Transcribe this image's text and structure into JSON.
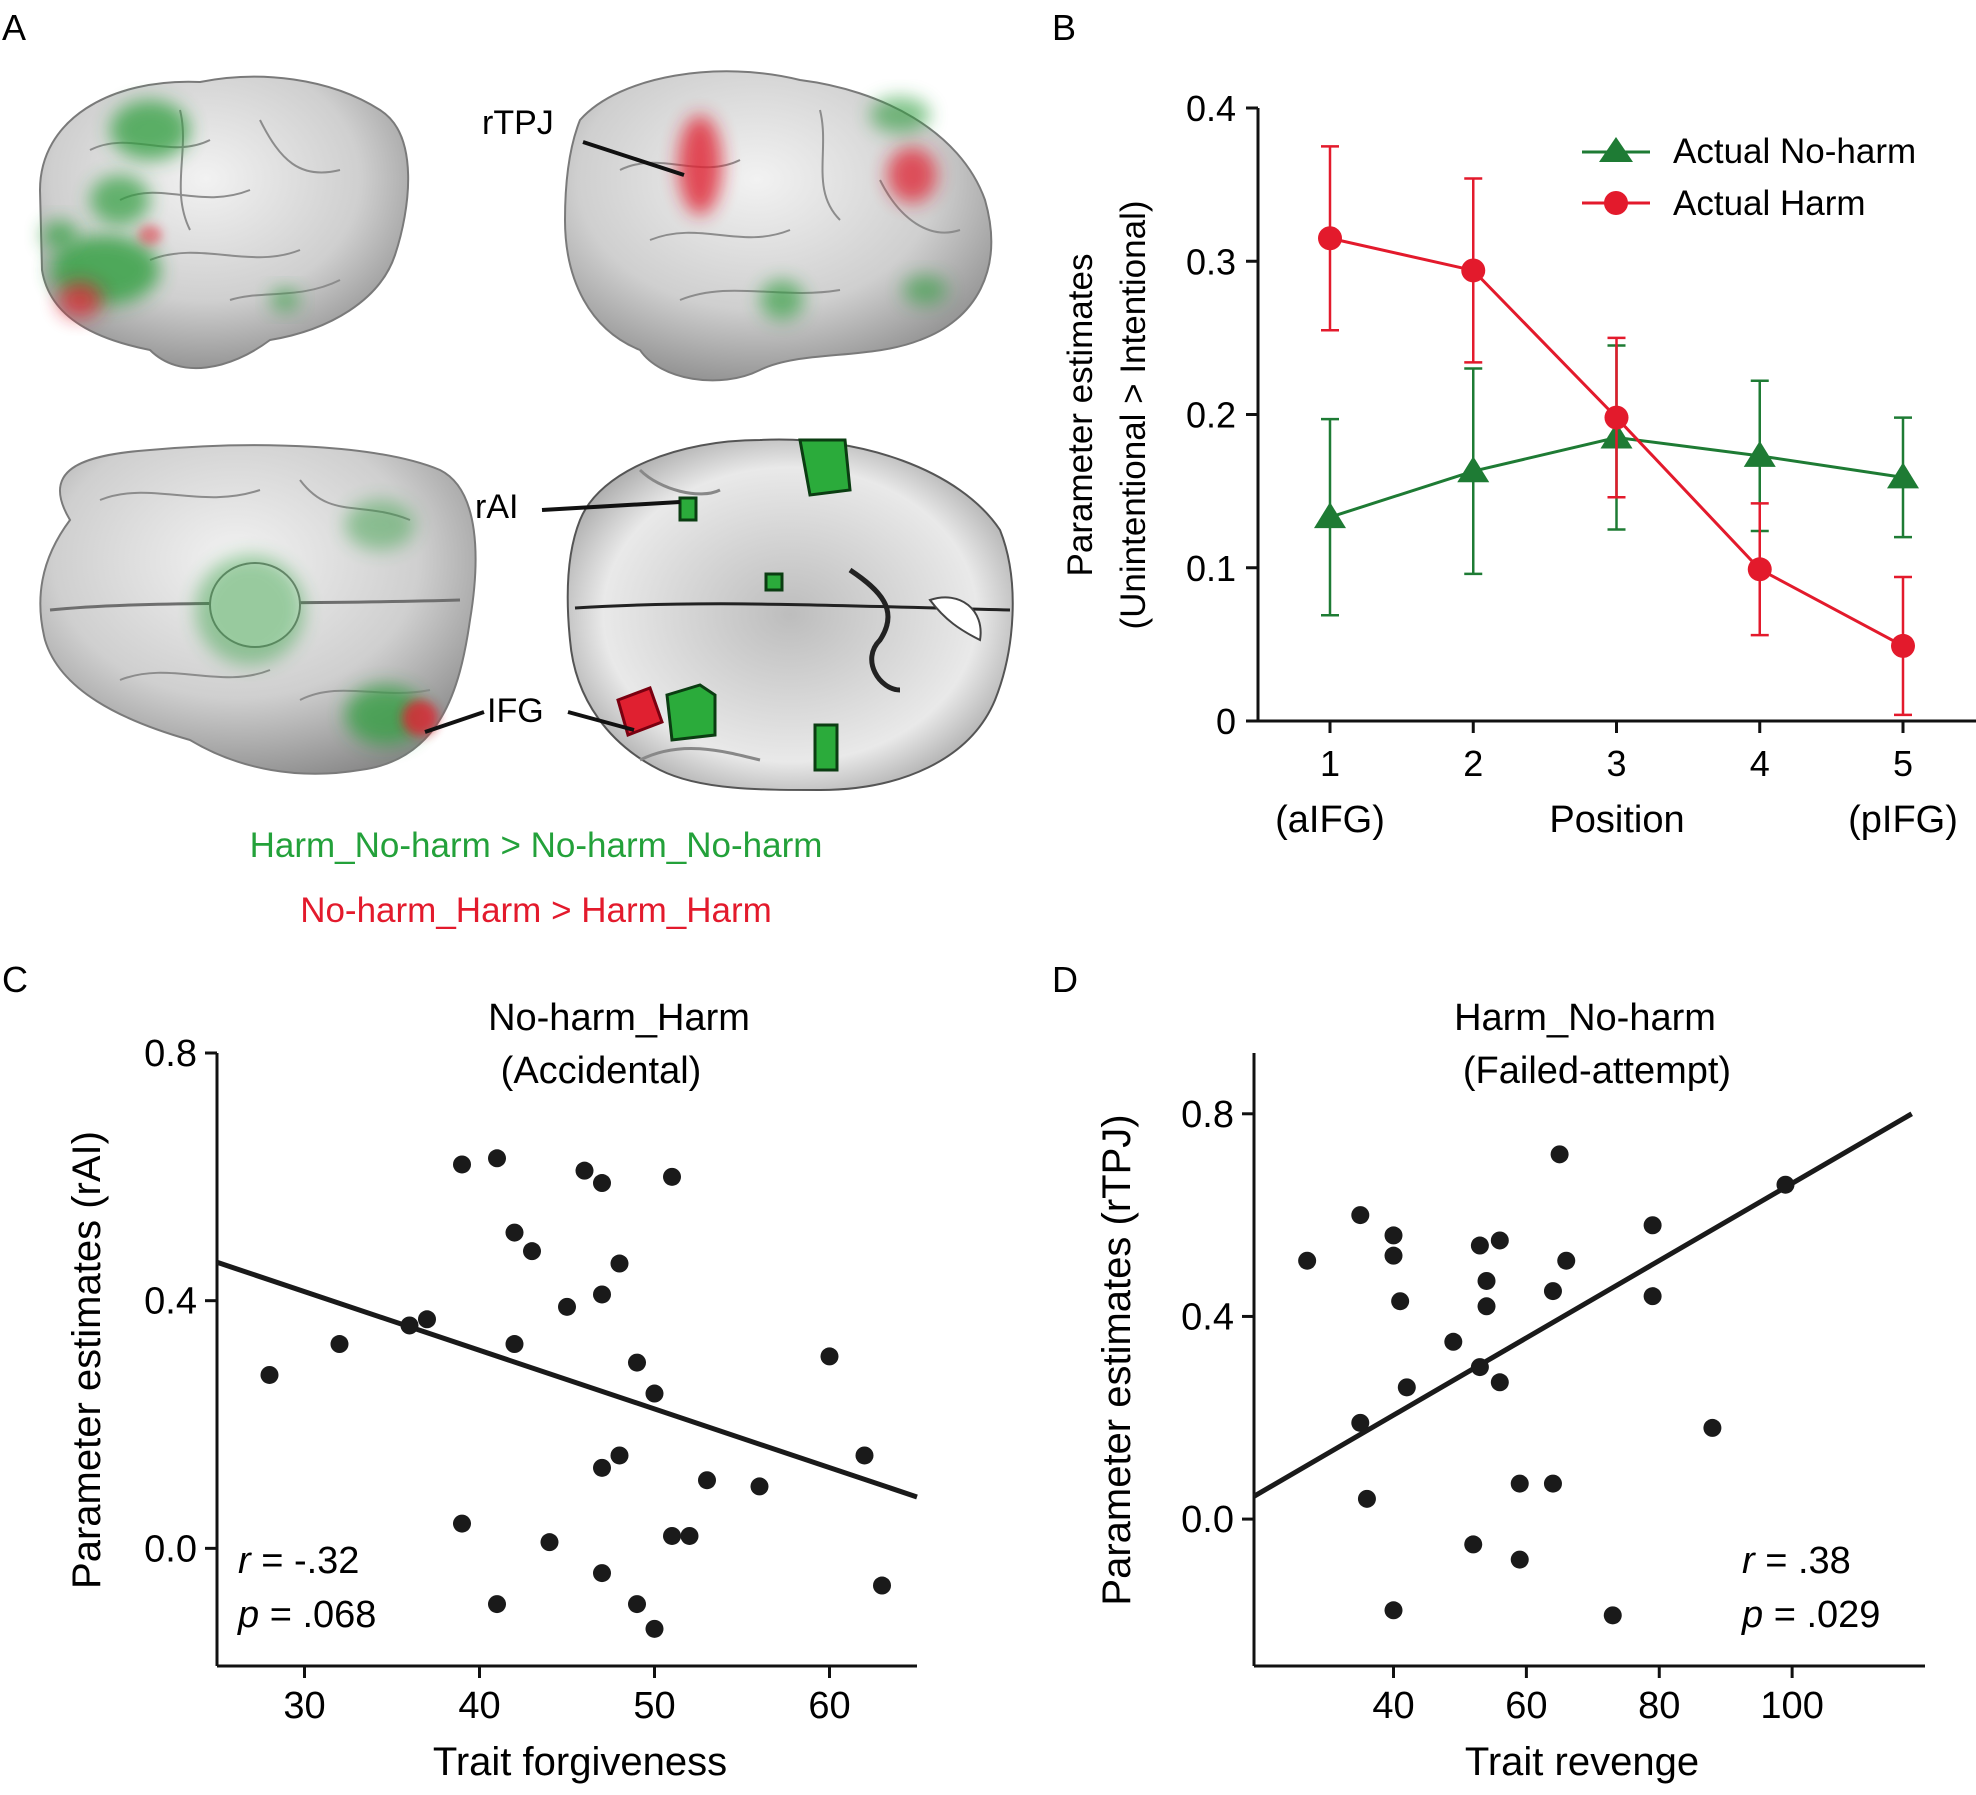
{
  "panels": {
    "a": {
      "letter": "A"
    },
    "b": {
      "letter": "B"
    },
    "c": {
      "letter": "C"
    },
    "d": {
      "letter": "D"
    }
  },
  "brain": {
    "labels": {
      "rtpj": "rTPJ",
      "rai": "rAI",
      "ifg": "IFG"
    },
    "legend_green": "Harm_No-harm > No-harm_No-harm",
    "legend_red": "No-harm_Harm > Harm_Harm"
  },
  "colors": {
    "green": "#1e7b34",
    "red": "#e31a2c",
    "legend_green": "#23a13a",
    "ink": "#1a1a1a",
    "brain": "#d4d4d4"
  },
  "chart_data": [
    {
      "id": "b",
      "type": "line",
      "ylabel_line1": "Parameter estimates",
      "ylabel_line2": "(Unintentional > Intentional)",
      "xlabel": "Position",
      "x": [
        1,
        2,
        3,
        4,
        5
      ],
      "xtick_labels": [
        "1",
        "2",
        "3",
        "4",
        "5"
      ],
      "xtick_sublabels": [
        "(aIFG)",
        "",
        "",
        "",
        "(pIFG)"
      ],
      "yticks": [
        0,
        0.1,
        0.2,
        0.3,
        0.4
      ],
      "ytick_labels": [
        "0",
        "0.1",
        "0.2",
        "0.3",
        "0.4"
      ],
      "ylim": [
        0,
        0.4
      ],
      "legend_position": "top-right",
      "series": [
        {
          "name": "Actual No-harm",
          "color": "#1e7b34",
          "marker": "triangle",
          "values": [
            0.133,
            0.163,
            0.185,
            0.173,
            0.159
          ],
          "error": [
            0.064,
            0.067,
            0.06,
            0.049,
            0.039
          ]
        },
        {
          "name": "Actual Harm",
          "color": "#e31a2c",
          "marker": "circle",
          "values": [
            0.315,
            0.294,
            0.198,
            0.099,
            0.049
          ],
          "error": [
            0.06,
            0.06,
            0.052,
            0.043,
            0.045
          ]
        }
      ]
    },
    {
      "id": "c",
      "type": "scatter",
      "title_line1": "No-harm_Harm",
      "title_line2": "(Accidental)",
      "xlabel": "Trait forgiveness",
      "ylabel": "Parameter estimates (rAI)",
      "xlim": [
        25,
        65
      ],
      "ylim": [
        -0.19,
        0.8
      ],
      "xticks": [
        30,
        40,
        50,
        60
      ],
      "yticks": [
        0.0,
        0.4,
        0.8
      ],
      "ytick_labels": [
        "0.0",
        "0.4",
        "0.8"
      ],
      "stat_r_label": "r",
      "stat_r_value": " = -.32",
      "stat_p_label": "p",
      "stat_p_value": " = .068",
      "fit": {
        "x": [
          25,
          65
        ],
        "y": [
          0.462,
          0.083
        ]
      },
      "points": [
        [
          28,
          0.28
        ],
        [
          32,
          0.33
        ],
        [
          36,
          0.36
        ],
        [
          37,
          0.37
        ],
        [
          39,
          0.62
        ],
        [
          41,
          0.63
        ],
        [
          42,
          0.51
        ],
        [
          43,
          0.48
        ],
        [
          42,
          0.33
        ],
        [
          46,
          0.61
        ],
        [
          47,
          0.59
        ],
        [
          48,
          0.46
        ],
        [
          47,
          0.41
        ],
        [
          45,
          0.39
        ],
        [
          51,
          0.6
        ],
        [
          49,
          0.3
        ],
        [
          50,
          0.25
        ],
        [
          48,
          0.15
        ],
        [
          47,
          0.13
        ],
        [
          53,
          0.11
        ],
        [
          56,
          0.1
        ],
        [
          60,
          0.31
        ],
        [
          62,
          0.15
        ],
        [
          39,
          0.04
        ],
        [
          44,
          0.01
        ],
        [
          51,
          0.02
        ],
        [
          52,
          0.02
        ],
        [
          47,
          -0.04
        ],
        [
          41,
          -0.09
        ],
        [
          49,
          -0.09
        ],
        [
          50,
          -0.13
        ],
        [
          63,
          -0.06
        ]
      ]
    },
    {
      "id": "d",
      "type": "scatter",
      "title_line1": "Harm_No-harm",
      "title_line2": "(Failed-attempt)",
      "xlabel": "Trait revenge",
      "ylabel": "Parameter estimates (rTPJ)",
      "xlim": [
        19,
        120
      ],
      "ylim": [
        -0.29,
        0.92
      ],
      "xticks": [
        40,
        60,
        80,
        100
      ],
      "yticks": [
        0.0,
        0.4,
        0.8
      ],
      "ytick_labels": [
        "0.0",
        "0.4",
        "0.8"
      ],
      "stat_r_label": "r",
      "stat_r_value": " = .38",
      "stat_p_label": "p",
      "stat_p_value": " = .029",
      "fit": {
        "x": [
          19,
          118
        ],
        "y": [
          0.045,
          0.8
        ]
      },
      "points": [
        [
          27,
          0.51
        ],
        [
          35,
          0.6
        ],
        [
          40,
          0.56
        ],
        [
          40,
          0.52
        ],
        [
          41,
          0.43
        ],
        [
          53,
          0.54
        ],
        [
          56,
          0.55
        ],
        [
          54,
          0.47
        ],
        [
          54,
          0.42
        ],
        [
          65,
          0.72
        ],
        [
          66,
          0.51
        ],
        [
          64,
          0.45
        ],
        [
          79,
          0.58
        ],
        [
          79,
          0.44
        ],
        [
          99,
          0.66
        ],
        [
          49,
          0.35
        ],
        [
          53,
          0.3
        ],
        [
          56,
          0.27
        ],
        [
          42,
          0.26
        ],
        [
          35,
          0.19
        ],
        [
          36,
          0.04
        ],
        [
          59,
          0.07
        ],
        [
          64,
          0.07
        ],
        [
          88,
          0.18
        ],
        [
          52,
          -0.05
        ],
        [
          59,
          -0.08
        ],
        [
          40,
          -0.18
        ],
        [
          73,
          -0.19
        ]
      ]
    }
  ]
}
